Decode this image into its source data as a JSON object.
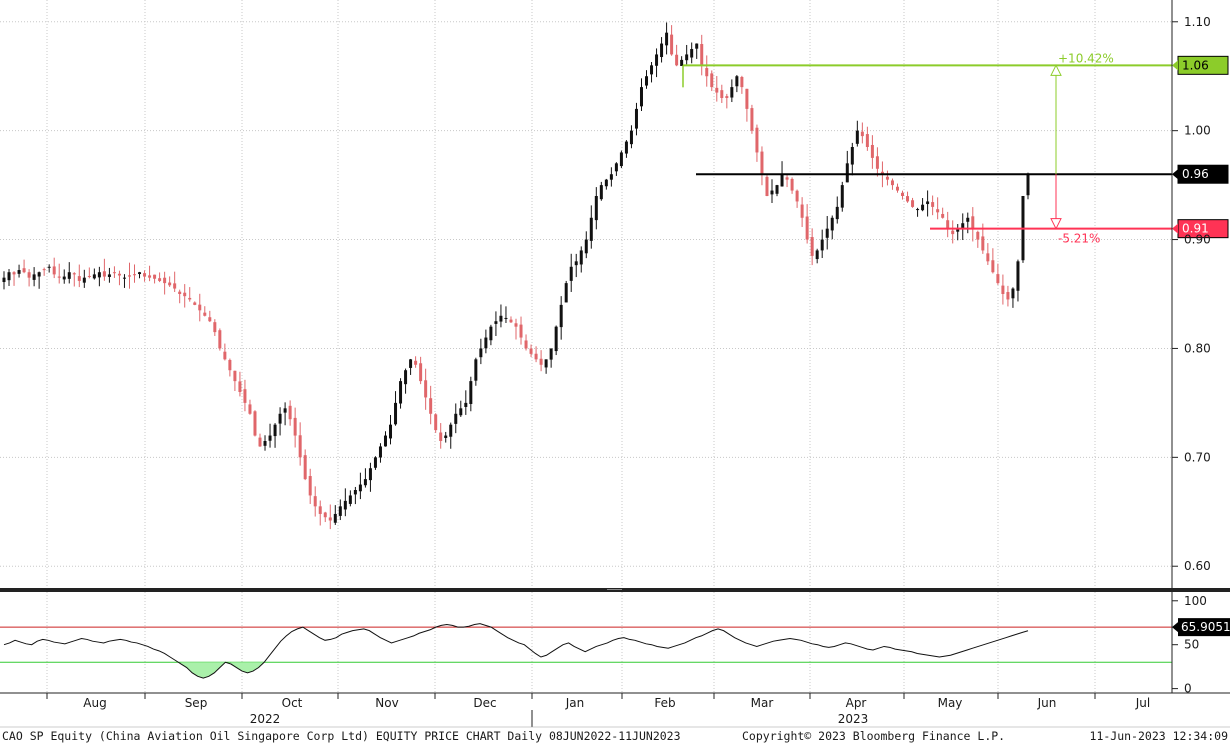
{
  "colors": {
    "up": "#111111",
    "down": "#e0666a",
    "grid": "#c8c8c8",
    "resistance": "#8ccc2a",
    "support": "#ff3355",
    "current": "#000000",
    "rsi_line": "#111111",
    "rsi_upper": "#cc2222",
    "rsi_lower": "#33cc33",
    "rsi_fill": "#aaf0aa"
  },
  "chart_data": {
    "type": "candlestick",
    "y_ticks": [
      "1.10",
      "1.00",
      "0.90",
      "0.80",
      "0.70",
      "0.60"
    ],
    "ylim": [
      0.58,
      1.12
    ],
    "x_months": [
      "Aug",
      "Sep",
      "Oct",
      "Nov",
      "Dec",
      "Jan",
      "Feb",
      "Mar",
      "Apr",
      "May",
      "Jun",
      "Jul"
    ],
    "x_years": [
      "2022",
      "2023"
    ],
    "ohlc_closes_approx": [
      0.865,
      0.87,
      0.868,
      0.872,
      0.87,
      0.865,
      0.868,
      0.87,
      0.872,
      0.875,
      0.868,
      0.865,
      0.866,
      0.87,
      0.868,
      0.862,
      0.865,
      0.866,
      0.868,
      0.87,
      0.866,
      0.868,
      0.87,
      0.867,
      0.865,
      0.866,
      0.868,
      0.87,
      0.866,
      0.865,
      0.864,
      0.862,
      0.86,
      0.858,
      0.855,
      0.85,
      0.848,
      0.845,
      0.84,
      0.835,
      0.83,
      0.825,
      0.815,
      0.8,
      0.79,
      0.78,
      0.77,
      0.76,
      0.75,
      0.74,
      0.72,
      0.71,
      0.715,
      0.72,
      0.73,
      0.74,
      0.745,
      0.735,
      0.72,
      0.7,
      0.68,
      0.665,
      0.655,
      0.648,
      0.645,
      0.642,
      0.648,
      0.655,
      0.66,
      0.665,
      0.67,
      0.675,
      0.68,
      0.69,
      0.7,
      0.71,
      0.72,
      0.73,
      0.75,
      0.77,
      0.78,
      0.79,
      0.785,
      0.77,
      0.755,
      0.74,
      0.725,
      0.715,
      0.72,
      0.73,
      0.74,
      0.745,
      0.75,
      0.77,
      0.79,
      0.8,
      0.81,
      0.82,
      0.825,
      0.83,
      0.828,
      0.824,
      0.82,
      0.81,
      0.8,
      0.795,
      0.79,
      0.785,
      0.79,
      0.8,
      0.82,
      0.84,
      0.86,
      0.875,
      0.88,
      0.89,
      0.9,
      0.92,
      0.94,
      0.95,
      0.955,
      0.96,
      0.97,
      0.98,
      0.99,
      1.0,
      1.02,
      1.04,
      1.05,
      1.06,
      1.07,
      1.08,
      1.09,
      1.07,
      1.06,
      1.065,
      1.07,
      1.075,
      1.08,
      1.06,
      1.05,
      1.04,
      1.035,
      1.03,
      1.03,
      1.04,
      1.05,
      1.04,
      1.02,
      1.0,
      0.98,
      0.96,
      0.94,
      0.945,
      0.95,
      0.96,
      0.955,
      0.945,
      0.935,
      0.92,
      0.9,
      0.885,
      0.89,
      0.9,
      0.91,
      0.92,
      0.93,
      0.95,
      0.97,
      0.985,
      1.0,
      0.995,
      0.985,
      0.975,
      0.965,
      0.96,
      0.955,
      0.95,
      0.945,
      0.94,
      0.935,
      0.93,
      0.928,
      0.932,
      0.935,
      0.93,
      0.925,
      0.92,
      0.91,
      0.905,
      0.91,
      0.915,
      0.92,
      0.91,
      0.9,
      0.89,
      0.88,
      0.87,
      0.86,
      0.85,
      0.845,
      0.855,
      0.88,
      0.94,
      0.96
    ],
    "levels": [
      {
        "label": "1.06",
        "annotation": "+10.42%"
      },
      {
        "label": "0.96"
      },
      {
        "label": "0.91",
        "annotation": "-5.21%"
      }
    ],
    "rsi": {
      "y_ticks": [
        "100",
        "50",
        "0"
      ],
      "ylim": [
        -5,
        110
      ],
      "upper": 70,
      "lower": 30,
      "value_label": "65.9051",
      "values": [
        50,
        52,
        55,
        53,
        51,
        50,
        54,
        56,
        55,
        53,
        52,
        51,
        53,
        55,
        57,
        56,
        54,
        53,
        52,
        54,
        55,
        56,
        55,
        53,
        52,
        50,
        48,
        45,
        43,
        40,
        36,
        32,
        28,
        24,
        18,
        14,
        12,
        14,
        18,
        24,
        30,
        28,
        24,
        20,
        18,
        20,
        24,
        30,
        38,
        46,
        54,
        60,
        65,
        68,
        70,
        66,
        62,
        58,
        55,
        56,
        58,
        62,
        64,
        66,
        67,
        68,
        66,
        62,
        58,
        55,
        52,
        54,
        56,
        58,
        60,
        63,
        65,
        67,
        70,
        72,
        73,
        72,
        70,
        70,
        71,
        73,
        74,
        72,
        70,
        66,
        62,
        58,
        55,
        52,
        50,
        45,
        40,
        36,
        38,
        42,
        46,
        50,
        52,
        48,
        45,
        42,
        45,
        48,
        50,
        52,
        55,
        57,
        58,
        56,
        55,
        53,
        51,
        50,
        48,
        47,
        46,
        48,
        50,
        52,
        55,
        58,
        60,
        63,
        66,
        68,
        66,
        62,
        58,
        55,
        52,
        50,
        48,
        50,
        52,
        54,
        55,
        56,
        57,
        56,
        55,
        53,
        51,
        50,
        48,
        47,
        48,
        50,
        52,
        51,
        49,
        47,
        45,
        44,
        46,
        48,
        47,
        45,
        44,
        43,
        42,
        40,
        39,
        38,
        37,
        36,
        37,
        38,
        40,
        42,
        44,
        46,
        48,
        50,
        52,
        54,
        56,
        58,
        60,
        62,
        64,
        65.9
      ]
    }
  },
  "footer": {
    "title": "CAO SP Equity (China Aviation Oil Singapore Corp Ltd) EQUITY PRICE CHART  Daily 08JUN2022-11JUN2023",
    "copyright": "Copyright© 2023 Bloomberg Finance L.P.",
    "timestamp": "11-Jun-2023 12:34:09"
  }
}
